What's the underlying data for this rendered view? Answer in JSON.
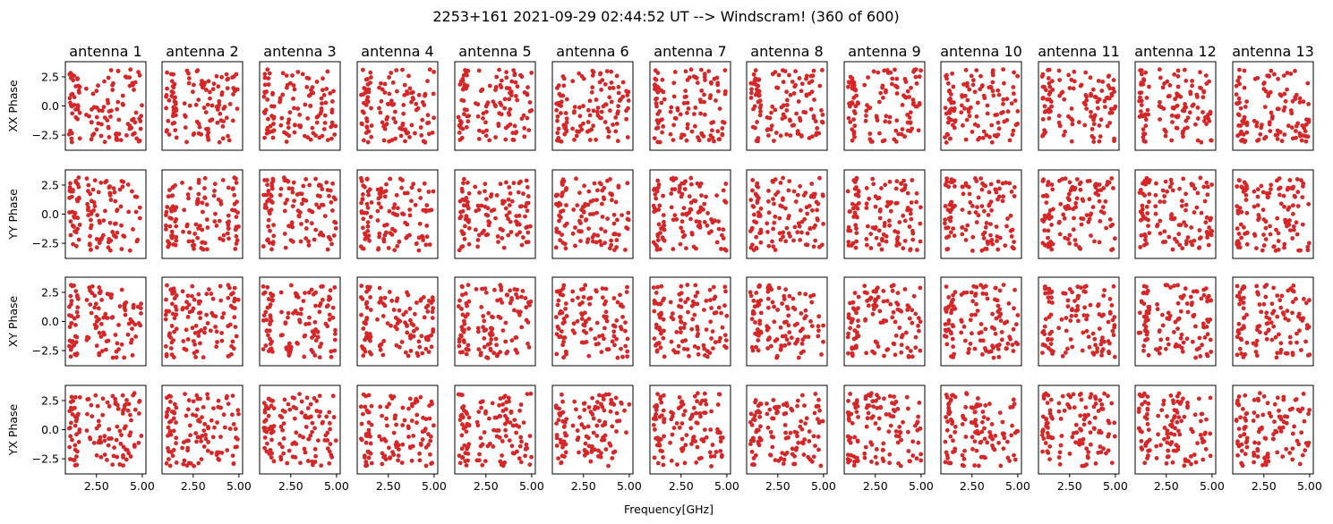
{
  "figure": {
    "title": "2253+161 2021-09-29 02:44:52 UT --> Windscram! (360 of 600)",
    "xlabel": "Frequency[GHz]"
  },
  "chart_data": {
    "type": "scatter",
    "title": "2253+161 2021-09-29 02:44:52 UT --> Windscram! (360 of 600)",
    "xlabel": "Frequency[GHz]",
    "columns": [
      "antenna 1",
      "antenna 2",
      "antenna 3",
      "antenna 4",
      "antenna 5",
      "antenna 6",
      "antenna 7",
      "antenna 8",
      "antenna 9",
      "antenna 10",
      "antenna 11",
      "antenna 12",
      "antenna 13"
    ],
    "rows": [
      "XX Phase",
      "YY Phase",
      "XY Phase",
      "YX Phase"
    ],
    "xlim": [
      0.8,
      5.2
    ],
    "ylim": [
      -3.8,
      3.8
    ],
    "xticks": [
      2.5,
      5.0
    ],
    "xtick_labels": [
      "2.50",
      "5.00"
    ],
    "yticks": [
      2.5,
      0.0,
      -2.5
    ],
    "ytick_labels": [
      "2.5",
      "0.0",
      "−2.5"
    ],
    "marker_color": "#d62728",
    "points_per_panel": 120,
    "x_range": [
      1.0,
      5.0
    ],
    "y_range": [
      -3.14,
      3.14
    ],
    "cluster": {
      "x_range": [
        1.0,
        1.6
      ],
      "count": 35
    },
    "grid": false,
    "legend": "none"
  }
}
